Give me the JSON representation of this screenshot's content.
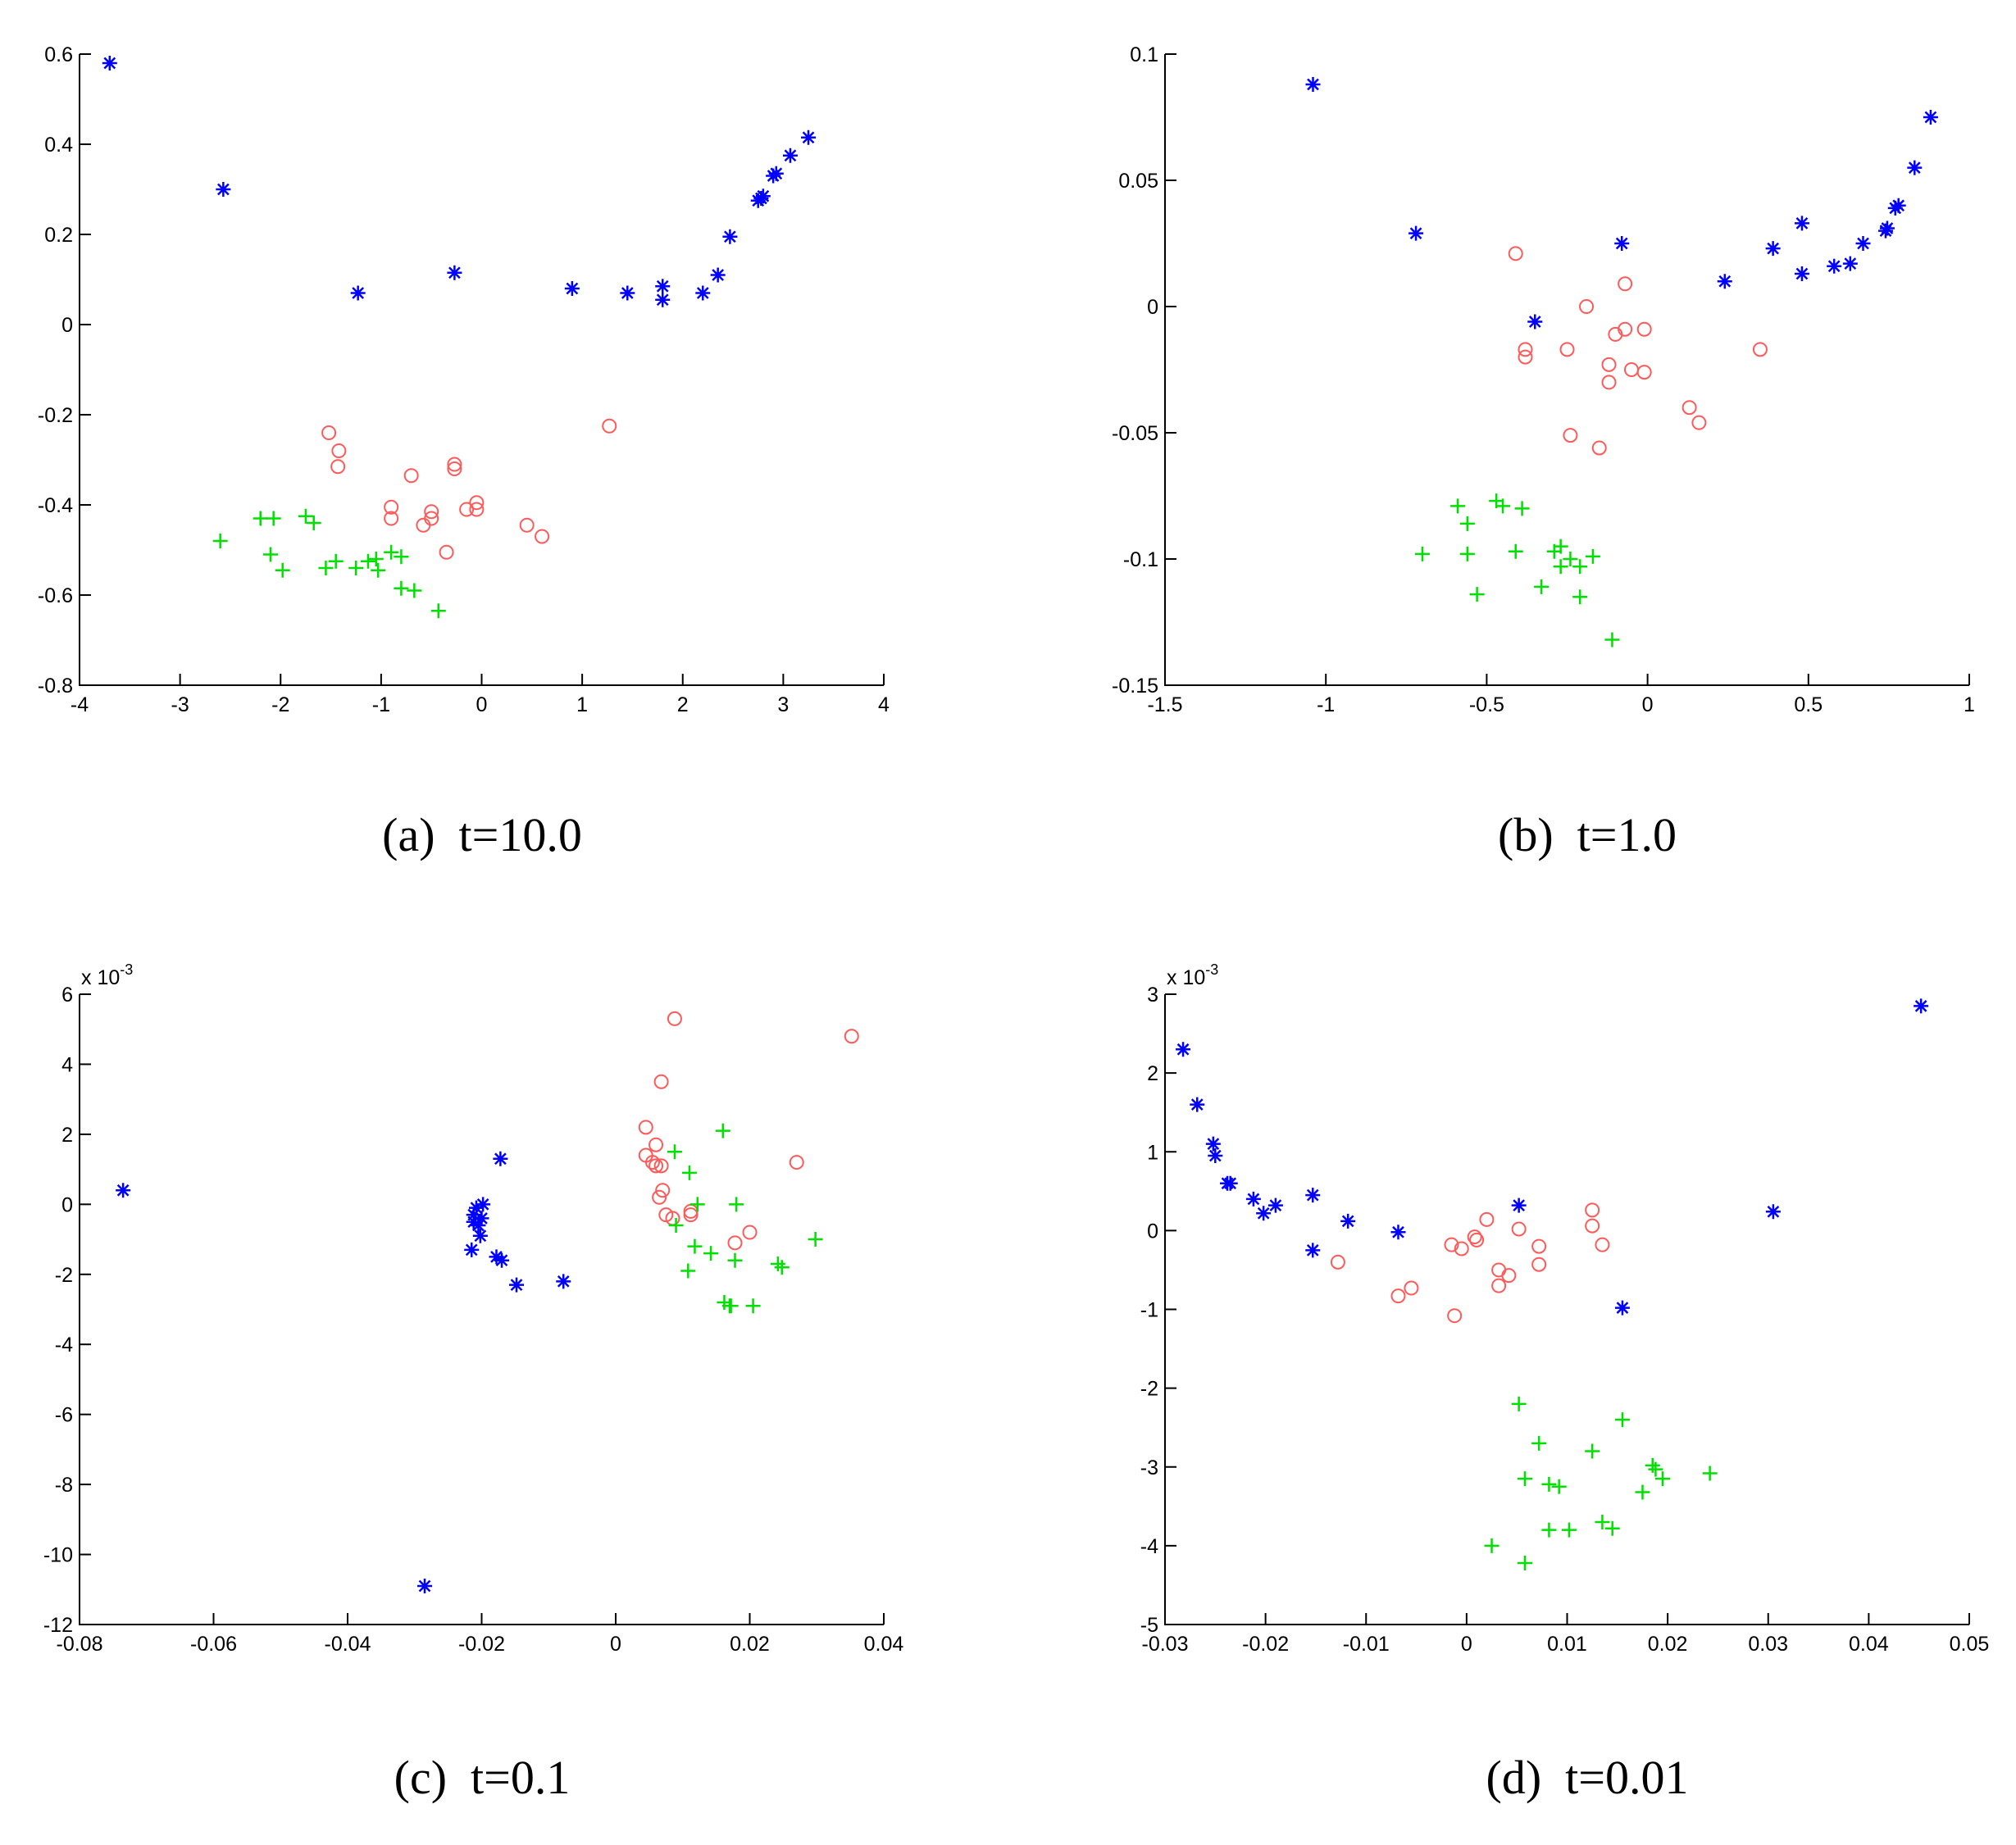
{
  "colors": {
    "series_star": "#0000ff",
    "series_circle": "#ff5a5a",
    "series_plus": "#00e000"
  },
  "chart_data": [
    {
      "type": "scatter",
      "caption": "(a)  t=10.0",
      "xlim": [
        -4,
        4
      ],
      "ylim": [
        -0.8,
        0.6
      ],
      "xticks": [
        "-4",
        "-3",
        "-2",
        "-1",
        "0",
        "1",
        "2",
        "3",
        "4"
      ],
      "yticks": [
        "0.6",
        "0.4",
        "0.2",
        "0",
        "-0.2",
        "-0.4",
        "-0.6",
        "-0.8"
      ],
      "xtick_values": [
        -4,
        -3,
        -2,
        -1,
        0,
        1,
        2,
        3,
        4
      ],
      "ytick_values": [
        0.6,
        0.4,
        0.2,
        0,
        -0.2,
        -0.4,
        -0.6,
        -0.8
      ],
      "exponent_label": "",
      "series": [
        {
          "marker": "star",
          "color": "#0000ff",
          "points": [
            [
              -3.7,
              0.58
            ],
            [
              -2.57,
              0.3
            ],
            [
              -1.23,
              0.07
            ],
            [
              -0.27,
              0.115
            ],
            [
              0.9,
              0.08
            ],
            [
              1.45,
              0.07
            ],
            [
              1.8,
              0.085
            ],
            [
              1.8,
              0.055
            ],
            [
              2.2,
              0.07
            ],
            [
              2.35,
              0.11
            ],
            [
              2.47,
              0.195
            ],
            [
              2.75,
              0.275
            ],
            [
              2.78,
              0.28
            ],
            [
              2.8,
              0.285
            ],
            [
              2.9,
              0.33
            ],
            [
              2.93,
              0.335
            ],
            [
              3.07,
              0.375
            ],
            [
              3.25,
              0.415
            ]
          ]
        },
        {
          "marker": "circle",
          "color": "#ff5a5a",
          "points": [
            [
              -1.52,
              -0.24
            ],
            [
              -1.42,
              -0.28
            ],
            [
              -1.43,
              -0.315
            ],
            [
              -0.7,
              -0.335
            ],
            [
              -0.27,
              -0.31
            ],
            [
              -0.27,
              -0.32
            ],
            [
              -0.9,
              -0.405
            ],
            [
              -0.9,
              -0.43
            ],
            [
              -0.58,
              -0.445
            ],
            [
              -0.5,
              -0.415
            ],
            [
              -0.5,
              -0.43
            ],
            [
              -0.15,
              -0.41
            ],
            [
              -0.05,
              -0.395
            ],
            [
              -0.05,
              -0.41
            ],
            [
              -0.35,
              -0.505
            ],
            [
              0.45,
              -0.445
            ],
            [
              0.6,
              -0.47
            ],
            [
              1.27,
              -0.225
            ]
          ]
        },
        {
          "marker": "plus",
          "color": "#00e000",
          "points": [
            [
              -2.6,
              -0.48
            ],
            [
              -2.2,
              -0.43
            ],
            [
              -2.07,
              -0.43
            ],
            [
              -2.1,
              -0.51
            ],
            [
              -1.98,
              -0.545
            ],
            [
              -1.75,
              -0.425
            ],
            [
              -1.67,
              -0.44
            ],
            [
              -1.55,
              -0.54
            ],
            [
              -1.45,
              -0.525
            ],
            [
              -1.25,
              -0.54
            ],
            [
              -1.13,
              -0.525
            ],
            [
              -1.05,
              -0.52
            ],
            [
              -1.03,
              -0.545
            ],
            [
              -0.9,
              -0.505
            ],
            [
              -0.8,
              -0.515
            ],
            [
              -0.8,
              -0.585
            ],
            [
              -0.67,
              -0.59
            ],
            [
              -0.43,
              -0.635
            ]
          ]
        }
      ]
    },
    {
      "type": "scatter",
      "caption": "(b)  t=1.0",
      "xlim": [
        -1.5,
        1
      ],
      "ylim": [
        -0.15,
        0.1
      ],
      "xticks": [
        "-1.5",
        "-1",
        "-0.5",
        "0",
        "0.5",
        "1"
      ],
      "yticks": [
        "0.1",
        "0.05",
        "0",
        "-0.05",
        "-0.1",
        "-0.15"
      ],
      "xtick_values": [
        -1.5,
        -1,
        -0.5,
        0,
        0.5,
        1
      ],
      "ytick_values": [
        0.1,
        0.05,
        0,
        -0.05,
        -0.1,
        -0.15
      ],
      "exponent_label": "",
      "series": [
        {
          "marker": "star",
          "color": "#0000ff",
          "points": [
            [
              -1.04,
              0.088
            ],
            [
              -0.72,
              0.029
            ],
            [
              -0.35,
              -0.006
            ],
            [
              -0.08,
              0.025
            ],
            [
              0.24,
              0.01
            ],
            [
              0.39,
              0.023
            ],
            [
              0.48,
              0.033
            ],
            [
              0.48,
              0.013
            ],
            [
              0.58,
              0.016
            ],
            [
              0.63,
              0.017
            ],
            [
              0.67,
              0.025
            ],
            [
              0.74,
              0.03
            ],
            [
              0.745,
              0.031
            ],
            [
              0.77,
              0.039
            ],
            [
              0.78,
              0.04
            ],
            [
              0.83,
              0.055
            ],
            [
              0.88,
              0.075
            ]
          ]
        },
        {
          "marker": "circle",
          "color": "#ff5a5a",
          "points": [
            [
              -0.41,
              0.021
            ],
            [
              -0.38,
              -0.017
            ],
            [
              -0.38,
              -0.02
            ],
            [
              -0.25,
              -0.017
            ],
            [
              -0.19,
              0.0
            ],
            [
              -0.12,
              -0.023
            ],
            [
              -0.12,
              -0.03
            ],
            [
              -0.1,
              -0.011
            ],
            [
              -0.07,
              0.009
            ],
            [
              -0.07,
              -0.009
            ],
            [
              -0.05,
              -0.025
            ],
            [
              -0.01,
              -0.009
            ],
            [
              -0.01,
              -0.026
            ],
            [
              -0.24,
              -0.051
            ],
            [
              -0.15,
              -0.056
            ],
            [
              0.13,
              -0.04
            ],
            [
              0.16,
              -0.046
            ],
            [
              0.35,
              -0.017
            ]
          ]
        },
        {
          "marker": "plus",
          "color": "#00e000",
          "points": [
            [
              -0.7,
              -0.098
            ],
            [
              -0.59,
              -0.079
            ],
            [
              -0.56,
              -0.086
            ],
            [
              -0.56,
              -0.098
            ],
            [
              -0.53,
              -0.114
            ],
            [
              -0.47,
              -0.077
            ],
            [
              -0.45,
              -0.079
            ],
            [
              -0.41,
              -0.097
            ],
            [
              -0.39,
              -0.08
            ],
            [
              -0.33,
              -0.111
            ],
            [
              -0.29,
              -0.097
            ],
            [
              -0.27,
              -0.103
            ],
            [
              -0.27,
              -0.095
            ],
            [
              -0.24,
              -0.1
            ],
            [
              -0.21,
              -0.103
            ],
            [
              -0.21,
              -0.115
            ],
            [
              -0.17,
              -0.099
            ],
            [
              -0.11,
              -0.132
            ]
          ]
        }
      ]
    },
    {
      "type": "scatter",
      "caption": "(c)  t=0.1",
      "xlim": [
        -0.08,
        0.04
      ],
      "ylim": [
        -0.012,
        0.006
      ],
      "xticks": [
        "-0.08",
        "-0.06",
        "-0.04",
        "-0.02",
        "0",
        "0.02",
        "0.04"
      ],
      "yticks": [
        "6",
        "4",
        "2",
        "0",
        "-2",
        "-4",
        "-6",
        "-8",
        "-10",
        "-12"
      ],
      "xtick_values": [
        -0.08,
        -0.06,
        -0.04,
        -0.02,
        0,
        0.02,
        0.04
      ],
      "ytick_values": [
        0.006,
        0.004,
        0.002,
        0,
        -0.002,
        -0.004,
        -0.006,
        -0.008,
        -0.01,
        -0.012
      ],
      "exponent_label": "x 10",
      "exponent_power": "-3",
      "series": [
        {
          "marker": "star",
          "color": "#0000ff",
          "points": [
            [
              -0.0735,
              0.0004
            ],
            [
              -0.0285,
              -0.0109
            ],
            [
              -0.0215,
              -0.0013
            ],
            [
              -0.0212,
              -0.0003
            ],
            [
              -0.0212,
              -0.0005
            ],
            [
              -0.0208,
              -0.0001
            ],
            [
              -0.0205,
              -0.0006
            ],
            [
              -0.0202,
              -0.0009
            ],
            [
              -0.02,
              -0.0004
            ],
            [
              -0.0198,
              0.0
            ],
            [
              -0.0178,
              -0.0015
            ],
            [
              -0.0172,
              0.0013
            ],
            [
              -0.017,
              -0.0016
            ],
            [
              -0.0148,
              -0.0023
            ],
            [
              -0.0078,
              -0.0022
            ]
          ]
        },
        {
          "marker": "circle",
          "color": "#ff5a5a",
          "points": [
            [
              0.0045,
              0.0022
            ],
            [
              0.0045,
              0.0014
            ],
            [
              0.0055,
              0.0012
            ],
            [
              0.006,
              0.0017
            ],
            [
              0.006,
              0.0011
            ],
            [
              0.0065,
              0.0002
            ],
            [
              0.0068,
              0.0011
            ],
            [
              0.0068,
              0.0035
            ],
            [
              0.007,
              0.0004
            ],
            [
              0.0075,
              -0.0003
            ],
            [
              0.0085,
              -0.0004
            ],
            [
              0.0088,
              0.0053
            ],
            [
              0.0112,
              -0.0002
            ],
            [
              0.0112,
              -0.0003
            ],
            [
              0.0178,
              -0.0011
            ],
            [
              0.02,
              -0.0008
            ],
            [
              0.027,
              0.0012
            ],
            [
              0.0352,
              0.0048
            ]
          ]
        },
        {
          "marker": "plus",
          "color": "#00e000",
          "points": [
            [
              0.0088,
              0.0015
            ],
            [
              0.009,
              -0.0006
            ],
            [
              0.0108,
              -0.0019
            ],
            [
              0.011,
              0.0009
            ],
            [
              0.0118,
              -0.0012
            ],
            [
              0.0122,
              0.0
            ],
            [
              0.0142,
              -0.0014
            ],
            [
              0.016,
              0.0021
            ],
            [
              0.0162,
              -0.0028
            ],
            [
              0.017,
              -0.0029
            ],
            [
              0.0172,
              -0.0029
            ],
            [
              0.0178,
              -0.0016
            ],
            [
              0.018,
              0.0
            ],
            [
              0.0205,
              -0.0029
            ],
            [
              0.0242,
              -0.0017
            ],
            [
              0.0248,
              -0.0018
            ],
            [
              0.0298,
              -0.001
            ]
          ]
        }
      ]
    },
    {
      "type": "scatter",
      "caption": "(d)  t=0.01",
      "xlim": [
        -0.03,
        0.05
      ],
      "ylim": [
        -0.005,
        0.003
      ],
      "xticks": [
        "-0.03",
        "-0.02",
        "-0.01",
        "0",
        "0.01",
        "0.02",
        "0.03",
        "0.04",
        "0.05"
      ],
      "yticks": [
        "3",
        "2",
        "1",
        "0",
        "-1",
        "-2",
        "-3",
        "-4",
        "-5"
      ],
      "xtick_values": [
        -0.03,
        -0.02,
        -0.01,
        0,
        0.01,
        0.02,
        0.03,
        0.04,
        0.05
      ],
      "ytick_values": [
        0.003,
        0.002,
        0.001,
        0,
        -0.001,
        -0.002,
        -0.003,
        -0.004,
        -0.005
      ],
      "exponent_label": "x 10",
      "exponent_power": "-3",
      "series": [
        {
          "marker": "star",
          "color": "#0000ff",
          "points": [
            [
              -0.0282,
              0.0023
            ],
            [
              -0.0268,
              0.0016
            ],
            [
              -0.0252,
              0.0011
            ],
            [
              -0.025,
              0.00095
            ],
            [
              -0.0238,
              0.0006
            ],
            [
              -0.0235,
              0.0006
            ],
            [
              -0.0212,
              0.0004
            ],
            [
              -0.0202,
              0.00022
            ],
            [
              -0.019,
              0.00032
            ],
            [
              -0.0153,
              0.00045
            ],
            [
              -0.0153,
              -0.00025
            ],
            [
              -0.0118,
              0.00012
            ],
            [
              -0.0068,
              -2e-05
            ],
            [
              0.0052,
              0.00032
            ],
            [
              0.0155,
              -0.00098
            ],
            [
              0.0305,
              0.00024
            ],
            [
              0.0452,
              0.00285
            ]
          ]
        },
        {
          "marker": "circle",
          "color": "#ff5a5a",
          "points": [
            [
              -0.0128,
              -0.0004
            ],
            [
              -0.0068,
              -0.00083
            ],
            [
              -0.0055,
              -0.00073
            ],
            [
              -0.0015,
              -0.00018
            ],
            [
              -0.0012,
              -0.00108
            ],
            [
              -0.0005,
              -0.00023
            ],
            [
              0.0008,
              -8e-05
            ],
            [
              0.001,
              -0.00012
            ],
            [
              0.002,
              0.00014
            ],
            [
              0.0032,
              -0.0005
            ],
            [
              0.0032,
              -0.0007
            ],
            [
              0.0042,
              -0.00057
            ],
            [
              0.0052,
              2e-05
            ],
            [
              0.0072,
              -0.0002
            ],
            [
              0.0072,
              -0.00043
            ],
            [
              0.0125,
              0.00026
            ],
            [
              0.0125,
              6e-05
            ],
            [
              0.0135,
              -0.00018
            ]
          ]
        },
        {
          "marker": "plus",
          "color": "#00e000",
          "points": [
            [
              0.0025,
              -0.004
            ],
            [
              0.0052,
              -0.0022
            ],
            [
              0.0058,
              -0.00315
            ],
            [
              0.0058,
              -0.00422
            ],
            [
              0.0072,
              -0.0027
            ],
            [
              0.0082,
              -0.00322
            ],
            [
              0.0082,
              -0.0038
            ],
            [
              0.0092,
              -0.00325
            ],
            [
              0.0102,
              -0.0038
            ],
            [
              0.0125,
              -0.0028
            ],
            [
              0.0135,
              -0.0037
            ],
            [
              0.0145,
              -0.00378
            ],
            [
              0.0155,
              -0.0024
            ],
            [
              0.0175,
              -0.00332
            ],
            [
              0.0185,
              -0.00298
            ],
            [
              0.0188,
              -0.00303
            ],
            [
              0.0195,
              -0.00315
            ],
            [
              0.0242,
              -0.00308
            ]
          ]
        }
      ]
    }
  ]
}
